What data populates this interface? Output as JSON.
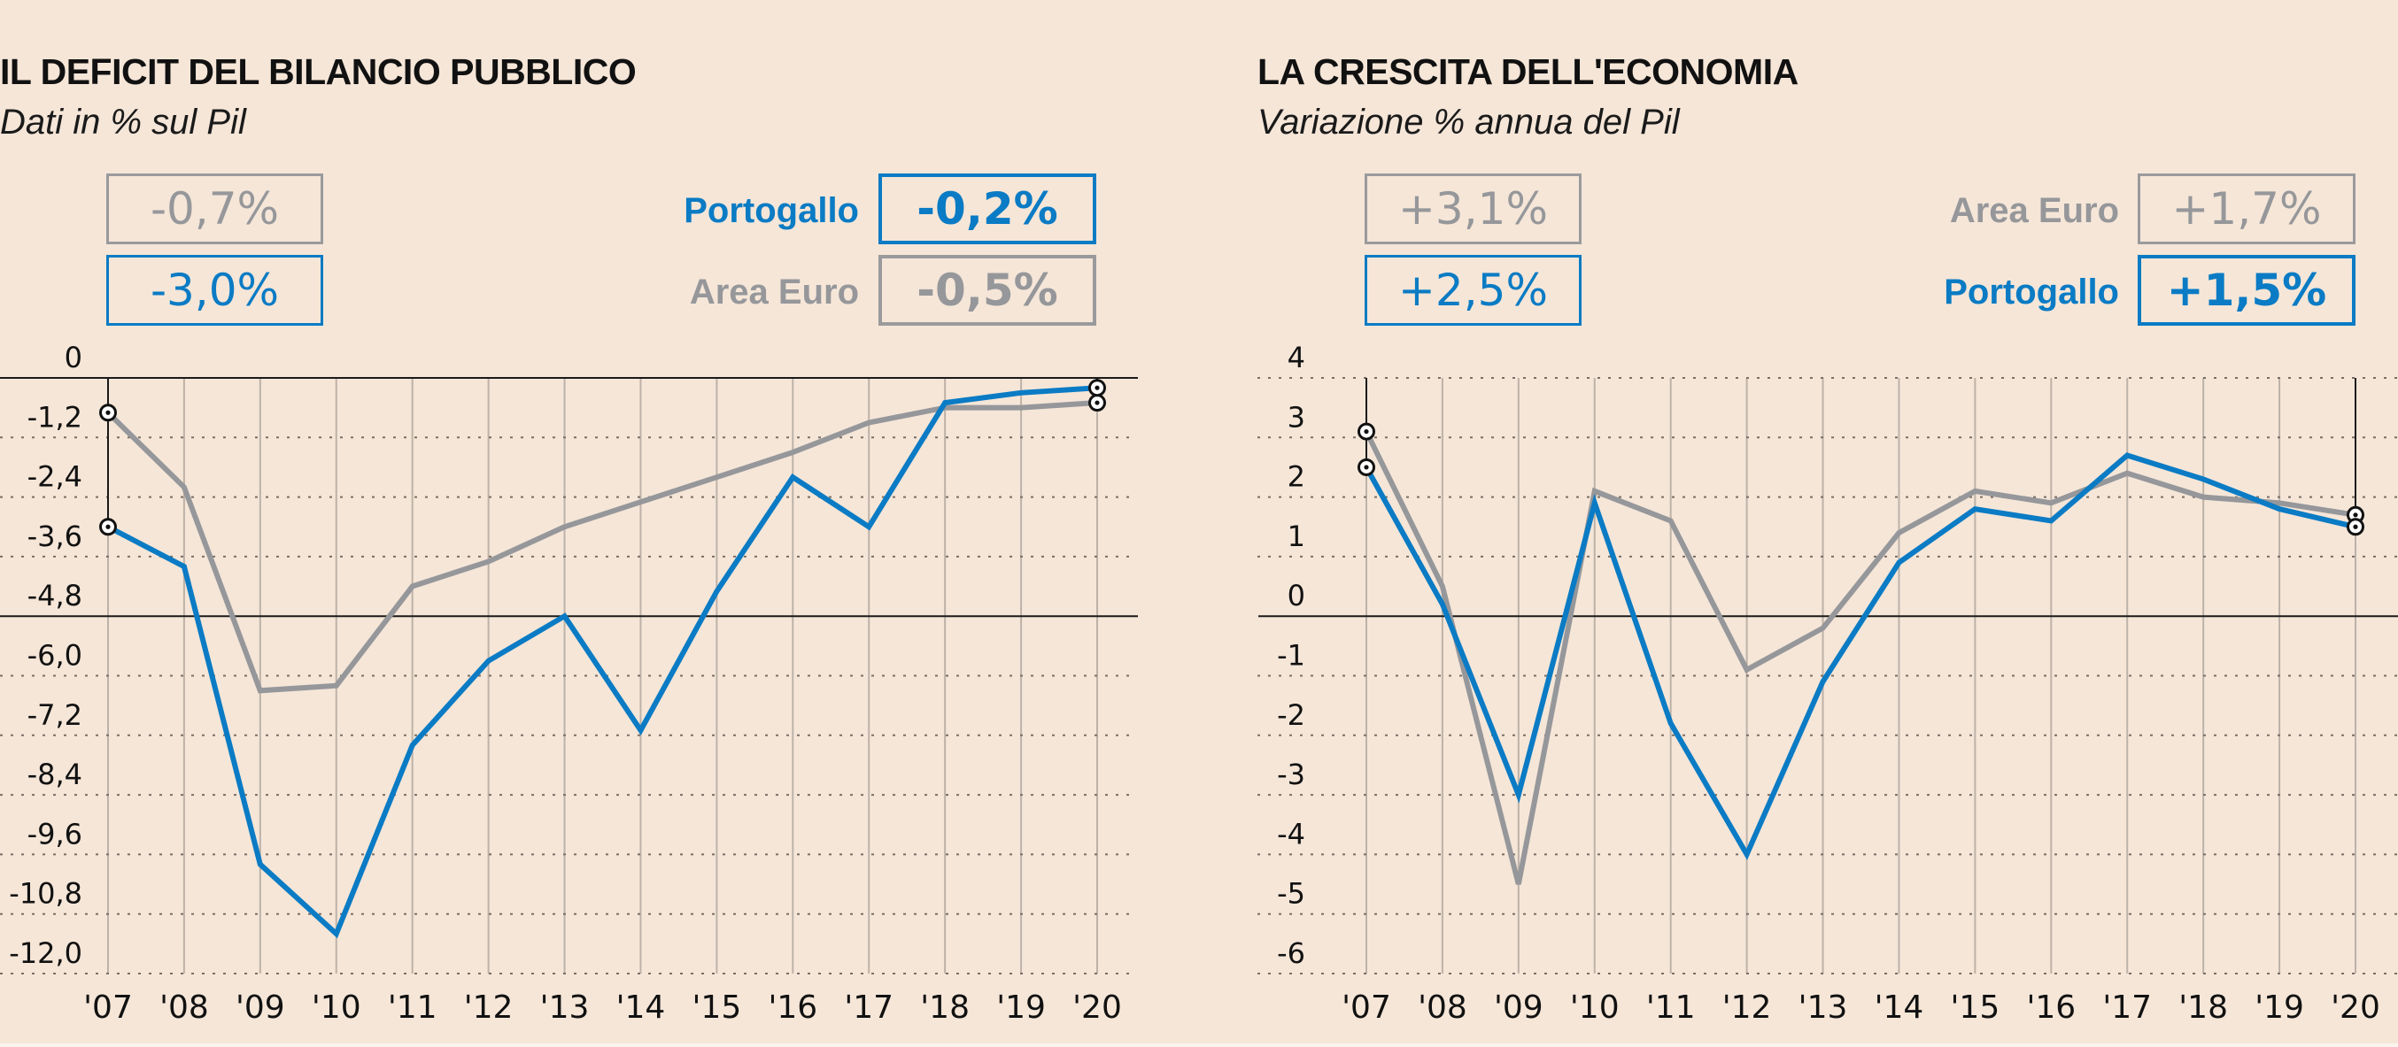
{
  "colors": {
    "background": "#f5e6d8",
    "portugal": "#0a7bc4",
    "euro_area": "#96979a",
    "axis": "#1a1a1a",
    "grid": "#7a6e66"
  },
  "panels": [
    {
      "title": "IL DEFICIT DEL BILANCIO PUBBLICO",
      "subtitle": "Dati in % sul Pil",
      "start_boxes": [
        {
          "series": "Area Euro",
          "value_label": "-0,7%"
        },
        {
          "series": "Portogallo",
          "value_label": "-3,0%"
        }
      ],
      "end_legend": [
        {
          "series": "Portogallo",
          "label": "Portogallo",
          "value_label": "-0,2%"
        },
        {
          "series": "Area Euro",
          "label": "Area Euro",
          "value_label": "-0,5%"
        }
      ]
    },
    {
      "title": "LA CRESCITA DELL'ECONOMIA",
      "subtitle": "Variazione % annua del Pil",
      "start_boxes": [
        {
          "series": "Area Euro",
          "value_label": "+3,1%"
        },
        {
          "series": "Portogallo",
          "value_label": "+2,5%"
        }
      ],
      "end_legend": [
        {
          "series": "Area Euro",
          "label": "Area Euro",
          "value_label": "+1,7%"
        },
        {
          "series": "Portogallo",
          "label": "Portogallo",
          "value_label": "+1,5%"
        }
      ]
    }
  ],
  "chart_data": [
    {
      "type": "line",
      "title": "IL DEFICIT DEL BILANCIO PUBBLICO",
      "subtitle": "Dati in % sul Pil",
      "xlabel": "",
      "ylabel": "",
      "categories": [
        "'07",
        "'08",
        "'09",
        "'10",
        "'11",
        "'12",
        "'13",
        "'14",
        "'15",
        "'16",
        "'17",
        "'18",
        "'19",
        "'20"
      ],
      "yticks": [
        "0",
        "-1,2",
        "-2,4",
        "-3,6",
        "-4,8",
        "-6,0",
        "-7,2",
        "-8,4",
        "-9,6",
        "-10,8",
        "-12,0"
      ],
      "ytick_values": [
        0,
        -1.2,
        -2.4,
        -3.6,
        -4.8,
        -6.0,
        -7.2,
        -8.4,
        -9.6,
        -10.8,
        -12.0
      ],
      "ylim": [
        -12.0,
        0
      ],
      "grid": true,
      "legend": "top-right",
      "series": [
        {
          "name": "Area Euro",
          "color": "#96979a",
          "values": [
            -0.7,
            -2.2,
            -6.3,
            -6.2,
            -4.2,
            -3.7,
            -3.0,
            -2.5,
            -2.0,
            -1.5,
            -0.9,
            -0.6,
            -0.6,
            -0.5
          ]
        },
        {
          "name": "Portogallo",
          "color": "#0a7bc4",
          "values": [
            -3.0,
            -3.8,
            -9.8,
            -11.2,
            -7.4,
            -5.7,
            -4.8,
            -7.1,
            -4.3,
            -2.0,
            -3.0,
            -0.5,
            -0.3,
            -0.2
          ]
        }
      ]
    },
    {
      "type": "line",
      "title": "LA CRESCITA DELL'ECONOMIA",
      "subtitle": "Variazione % annua del Pil",
      "xlabel": "",
      "ylabel": "",
      "categories": [
        "'07",
        "'08",
        "'09",
        "'10",
        "'11",
        "'12",
        "'13",
        "'14",
        "'15",
        "'16",
        "'17",
        "'18",
        "'19",
        "'20"
      ],
      "yticks": [
        "4",
        "3",
        "2",
        "1",
        "0",
        "-1",
        "-2",
        "-3",
        "-4",
        "-5",
        "-6"
      ],
      "ytick_values": [
        4,
        3,
        2,
        1,
        0,
        -1,
        -2,
        -3,
        -4,
        -5,
        -6
      ],
      "ylim": [
        -6,
        4
      ],
      "grid": true,
      "legend": "top-right",
      "series": [
        {
          "name": "Area Euro",
          "color": "#96979a",
          "values": [
            3.1,
            0.5,
            -4.5,
            2.1,
            1.6,
            -0.9,
            -0.2,
            1.4,
            2.1,
            1.9,
            2.4,
            2.0,
            1.9,
            1.7
          ]
        },
        {
          "name": "Portogallo",
          "color": "#0a7bc4",
          "values": [
            2.5,
            0.2,
            -3.0,
            1.9,
            -1.8,
            -4.0,
            -1.1,
            0.9,
            1.8,
            1.6,
            2.7,
            2.3,
            1.8,
            1.5
          ]
        }
      ]
    }
  ]
}
